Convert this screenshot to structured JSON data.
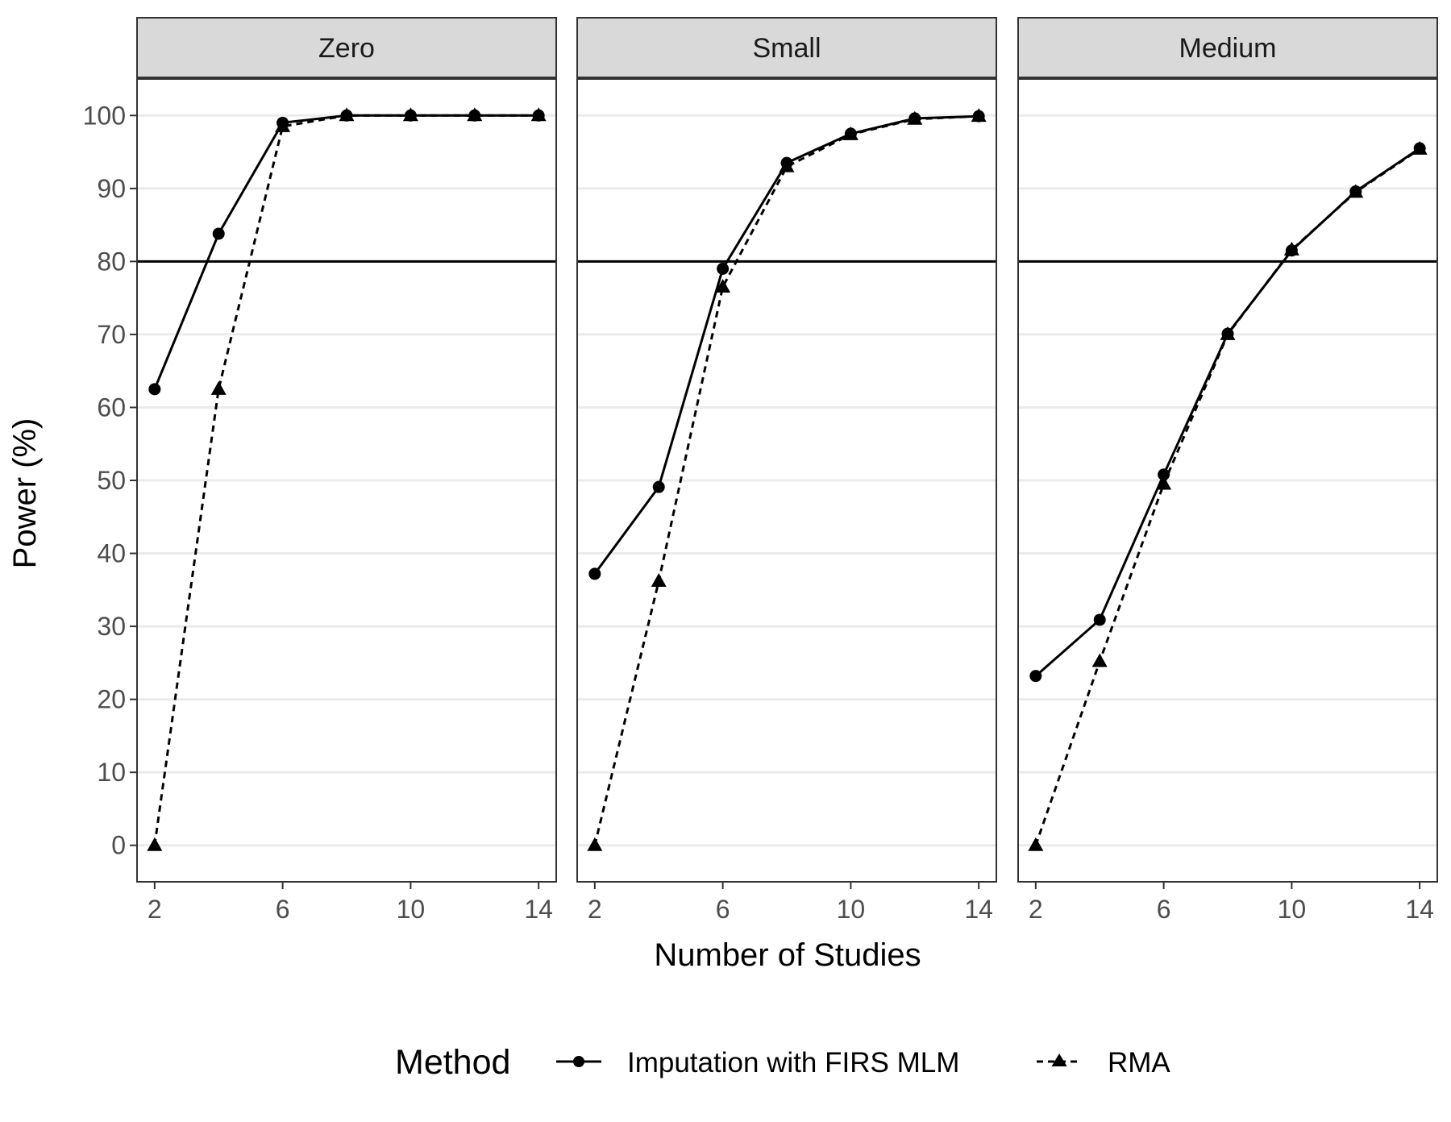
{
  "chart_data": {
    "type": "line",
    "xlabel": "Number of Studies",
    "ylabel": "Power (%)",
    "xlim": [
      1.45,
      14.55
    ],
    "ylim": [
      -5,
      105
    ],
    "x_ticks": [
      2,
      6,
      10,
      14
    ],
    "y_ticks": [
      0,
      10,
      20,
      30,
      40,
      50,
      60,
      70,
      80,
      90,
      100
    ],
    "x_tick_labels": [
      "2",
      "6",
      "10",
      "14"
    ],
    "y_tick_labels": [
      "0",
      "10",
      "20",
      "30",
      "40",
      "50",
      "60",
      "70",
      "80",
      "90",
      "100"
    ],
    "reference_line": 80,
    "grid": true,
    "legend": {
      "title": "Method",
      "position": "bottom",
      "entries": [
        "Imputation with FIRS MLM",
        "RMA"
      ]
    },
    "x": [
      2,
      4,
      6,
      8,
      10,
      12,
      14
    ],
    "panels": [
      {
        "strip": "Zero",
        "series": [
          {
            "name": "Imputation with FIRS MLM",
            "marker": "circle",
            "line": "solid",
            "values": [
              62.5,
              83.8,
              99.0,
              100,
              100,
              100,
              100
            ]
          },
          {
            "name": "RMA",
            "marker": "triangle",
            "line": "dashed",
            "values": [
              0,
              62.5,
              98.5,
              100,
              100,
              100,
              100
            ]
          }
        ]
      },
      {
        "strip": "Small",
        "series": [
          {
            "name": "Imputation with FIRS MLM",
            "marker": "circle",
            "line": "solid",
            "values": [
              37.2,
              49.1,
              79.0,
              93.5,
              97.5,
              99.6,
              99.9
            ]
          },
          {
            "name": "RMA",
            "marker": "triangle",
            "line": "dashed",
            "values": [
              0,
              36.2,
              76.5,
              93.0,
              97.4,
              99.5,
              99.9
            ]
          }
        ]
      },
      {
        "strip": "Medium",
        "series": [
          {
            "name": "Imputation with FIRS MLM",
            "marker": "circle",
            "line": "solid",
            "values": [
              23.2,
              30.9,
              50.8,
              70.1,
              81.5,
              89.6,
              95.5
            ]
          },
          {
            "name": "RMA",
            "marker": "triangle",
            "line": "dashed",
            "values": [
              0,
              25.2,
              49.5,
              70.0,
              81.6,
              89.5,
              95.4
            ]
          }
        ]
      }
    ]
  }
}
